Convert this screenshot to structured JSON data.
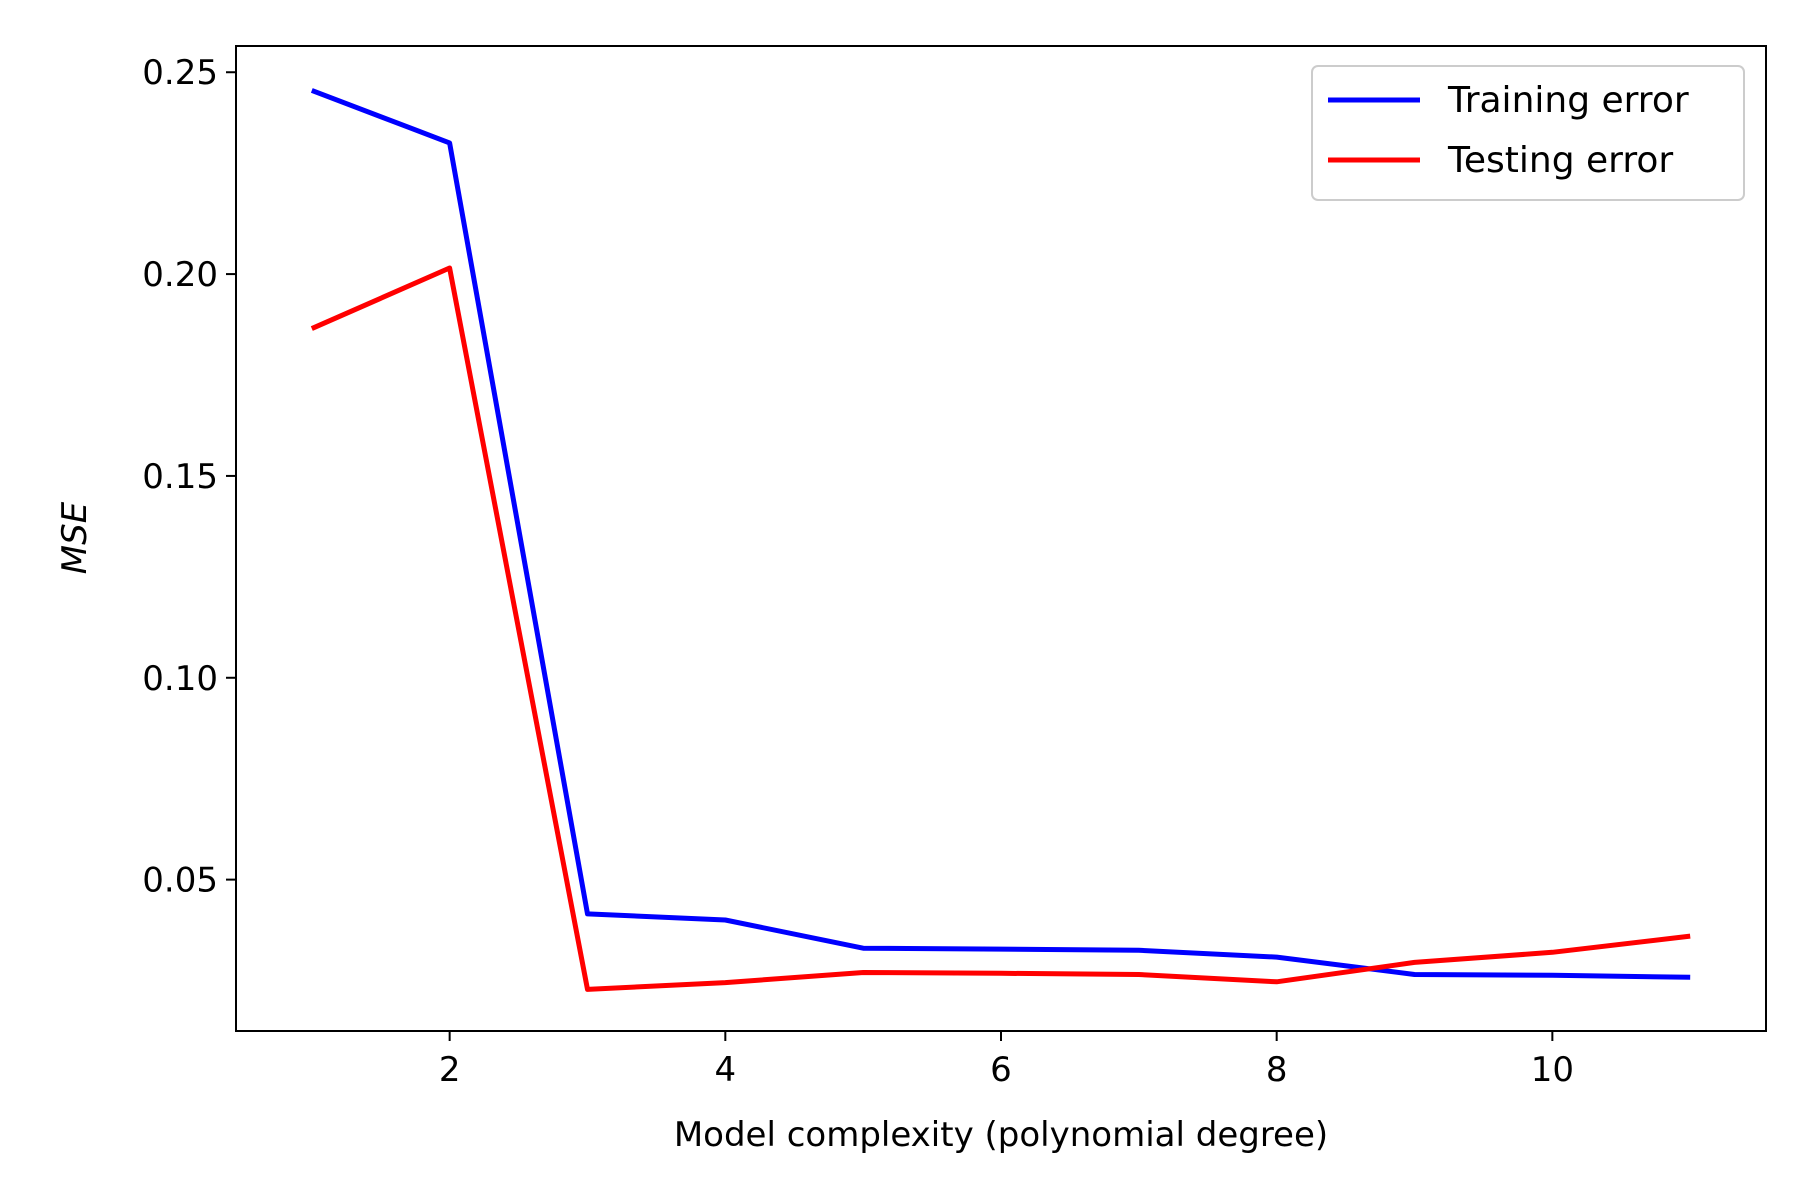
{
  "chart_data": {
    "type": "line",
    "title": "",
    "xlabel": "Model complexity (polynomial degree)",
    "ylabel": "MSE",
    "x": [
      1,
      2,
      3,
      4,
      5,
      6,
      7,
      8,
      9,
      10,
      11
    ],
    "xlim": [
      0.45,
      11.55
    ],
    "ylim": [
      0.0125,
      0.2565
    ],
    "xticks": [
      2,
      4,
      6,
      8,
      10
    ],
    "xtick_labels": [
      "2",
      "4",
      "6",
      "8",
      "10"
    ],
    "yticks": [
      0.05,
      0.1,
      0.15,
      0.2,
      0.25
    ],
    "ytick_labels": [
      "0.05",
      "0.10",
      "0.15",
      "0.20",
      "0.25"
    ],
    "grid": false,
    "legend_position": "top-right",
    "series": [
      {
        "name": "Training error",
        "color": "#0000ff",
        "values": [
          0.2455,
          0.2325,
          0.0415,
          0.04,
          0.033,
          0.0328,
          0.0325,
          0.0308,
          0.0265,
          0.0263,
          0.0258
        ]
      },
      {
        "name": "Testing error",
        "color": "#ff0000",
        "values": [
          0.1865,
          0.2015,
          0.0228,
          0.0245,
          0.027,
          0.0268,
          0.0265,
          0.0247,
          0.0295,
          0.032,
          0.036
        ]
      }
    ]
  }
}
